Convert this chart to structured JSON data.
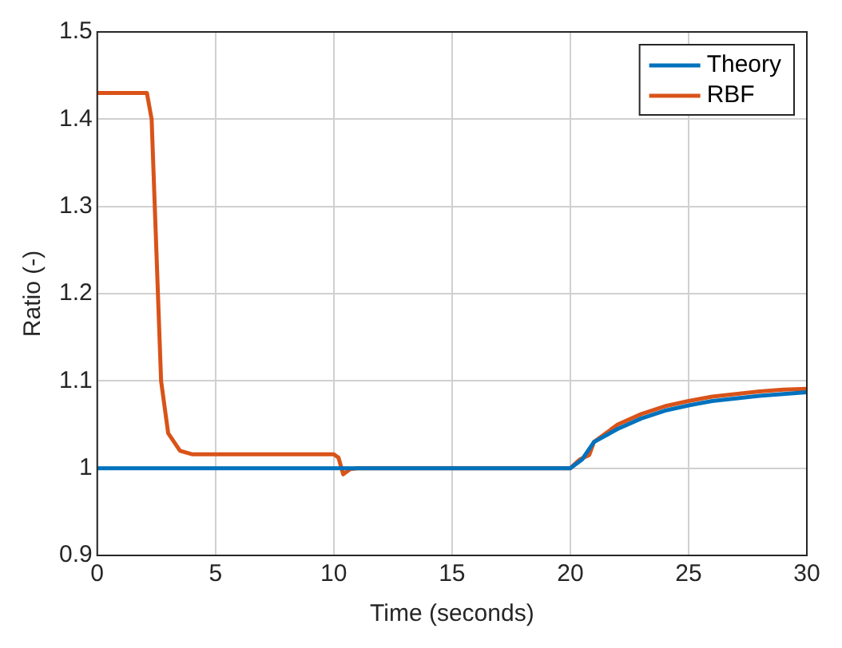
{
  "chart_data": {
    "type": "line",
    "xlabel": "Time (seconds)",
    "ylabel": "Ratio (-)",
    "xlim": [
      0,
      30
    ],
    "xticks": [
      0,
      5,
      10,
      15,
      20,
      25,
      30
    ],
    "ylim": [
      0.9,
      1.5
    ],
    "yticks": [
      0.9,
      1,
      1.1,
      1.2,
      1.3,
      1.4,
      1.5
    ],
    "grid": true,
    "legend": "top right",
    "series": [
      {
        "name": "Theory",
        "color": "#0072bd",
        "x": [
          0,
          20,
          20.5,
          21,
          22,
          23,
          24,
          25,
          26,
          27,
          28,
          29,
          30
        ],
        "values": [
          1,
          1,
          1.01,
          1.03,
          1.045,
          1.057,
          1.066,
          1.072,
          1.077,
          1.08,
          1.083,
          1.085,
          1.087
        ]
      },
      {
        "name": "RBF",
        "color": "#d95319",
        "x": [
          0,
          2.1,
          2.3,
          2.5,
          2.7,
          3,
          3.5,
          4,
          10,
          10.2,
          10.4,
          10.7,
          11,
          20,
          20.4,
          20.8,
          21,
          22,
          23,
          24,
          25,
          26,
          27,
          28,
          29,
          30
        ],
        "values": [
          1.43,
          1.43,
          1.4,
          1.25,
          1.1,
          1.04,
          1.02,
          1.016,
          1.016,
          1.012,
          0.993,
          0.999,
          1,
          1,
          1.01,
          1.015,
          1.03,
          1.05,
          1.062,
          1.071,
          1.077,
          1.082,
          1.085,
          1.088,
          1.09,
          1.091
        ]
      }
    ]
  }
}
